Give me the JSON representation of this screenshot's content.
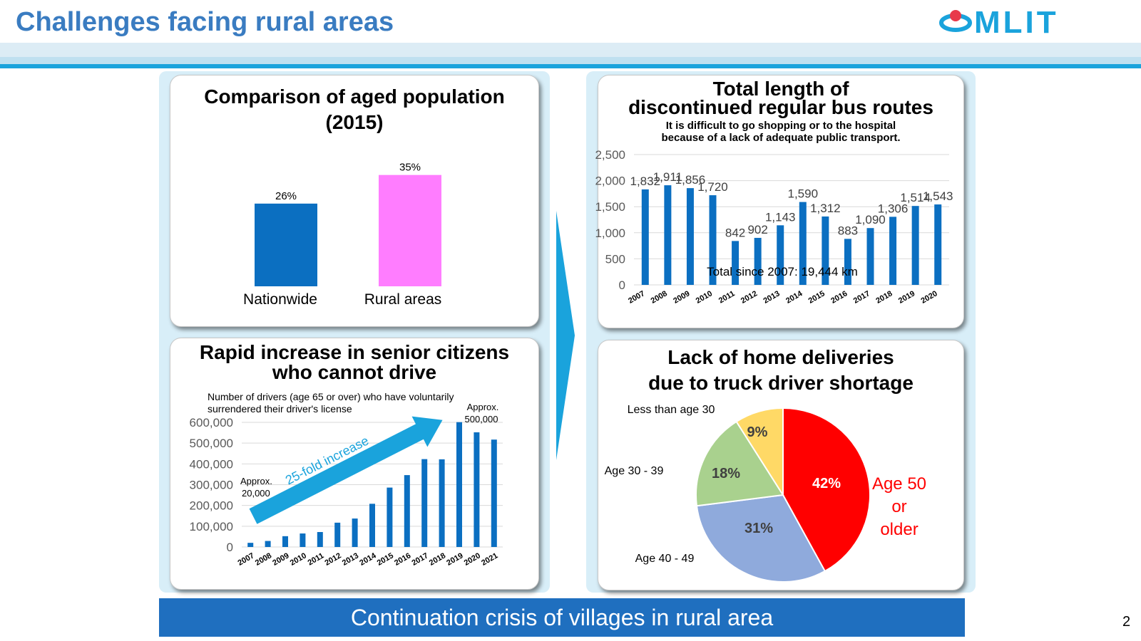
{
  "header": {
    "title": "Challenges facing rural areas",
    "logo_text": "MLIT"
  },
  "footer": {
    "banner": "Continuation crisis of villages in rural area",
    "page_number": "2"
  },
  "colors": {
    "accent": "#3a7cc1",
    "bar_blue": "#0b6fc1",
    "pink": "#ff7dff",
    "banner": "#1f6fbf",
    "arrow": "#1aa3dc"
  },
  "chart_data": [
    {
      "id": "aged",
      "type": "bar",
      "title": "Comparison of aged population (2015)",
      "title_lines": [
        "Comparison of aged population",
        "(2015)"
      ],
      "categories": [
        "Nationwide",
        "Rural areas"
      ],
      "values": [
        26,
        35
      ],
      "data_labels": [
        "26%",
        "35%"
      ],
      "colors": [
        "#0b6fc1",
        "#ff7dff"
      ],
      "unit": "%",
      "ylim": [
        0,
        45
      ]
    },
    {
      "id": "bus",
      "type": "bar",
      "title": "Total length of discontinued regular bus routes",
      "title_lines": [
        "Total length of",
        "discontinued regular bus routes"
      ],
      "subtitle_lines": [
        "It  is difficult to go shopping or to the hospital",
        "because of a lack of adequate public transport."
      ],
      "categories": [
        "2007",
        "2008",
        "2009",
        "2010",
        "2011",
        "2012",
        "2013",
        "2014",
        "2015",
        "2016",
        "2017",
        "2018",
        "2019",
        "2020"
      ],
      "values": [
        1832,
        1911,
        1856,
        1720,
        842,
        902,
        1143,
        1590,
        1312,
        883,
        1090,
        1306,
        1514,
        1543
      ],
      "data_labels": [
        "1,832",
        "1,911",
        "1,856",
        "1,720",
        "842",
        "902",
        "1,143",
        "1,590",
        "1,312",
        "883",
        "1,090",
        "1,306",
        "1,514",
        "1,543"
      ],
      "yticks": [
        "0",
        "500",
        "1,000",
        "1,500",
        "2,000",
        "2,500"
      ],
      "ylim": [
        0,
        2500
      ],
      "grid": true,
      "annotation": "Total since 2007: 19,444 km"
    },
    {
      "id": "drivers",
      "type": "bar",
      "title": "Rapid increase in senior citizens who cannot drive",
      "title_lines": [
        "Rapid increase in senior citizens",
        "who cannot drive"
      ],
      "subtitle_lines": [
        "Number of drivers (age 65 or over) who have voluntarily",
        "surrendered their driver's license"
      ],
      "categories": [
        "2007",
        "2008",
        "2009",
        "2010",
        "2011",
        "2012",
        "2013",
        "2014",
        "2015",
        "2016",
        "2017",
        "2018",
        "2019",
        "2020",
        "2021"
      ],
      "values": [
        20000,
        29000,
        52000,
        65000,
        72000,
        117000,
        137000,
        208000,
        286000,
        346000,
        423000,
        422000,
        601000,
        552000,
        517000
      ],
      "yticks": [
        "0",
        "100,000",
        "200,000",
        "300,000",
        "400,000",
        "500,000",
        "600,000"
      ],
      "ylim": [
        0,
        650000
      ],
      "grid": true,
      "annotations": {
        "start_lines": [
          "Approx.",
          "20,000"
        ],
        "end_lines": [
          "Approx.",
          "500,000"
        ],
        "arrow_text": "25-fold increase"
      }
    },
    {
      "id": "delivery",
      "type": "pie",
      "title": "Lack of home deliveries due to truck driver shortage",
      "title_lines": [
        "Lack of home deliveries",
        "due to truck driver shortage"
      ],
      "slices": [
        {
          "label": "Age 50 or older",
          "label_lines": [
            "Age 50",
            "or",
            "older"
          ],
          "value": 42,
          "text": "42%",
          "color": "#ff0000"
        },
        {
          "label": "Age 40 - 49",
          "label_lines": [
            "Age 40 - 49"
          ],
          "value": 31,
          "text": "31%",
          "color": "#8faadc"
        },
        {
          "label": "Age 30 - 39",
          "label_lines": [
            "Age 30 - 39"
          ],
          "value": 18,
          "text": "18%",
          "color": "#a9d18e"
        },
        {
          "label": "Less than age 30",
          "label_lines": [
            "Less than age 30"
          ],
          "value": 9,
          "text": "9%",
          "color": "#ffd966"
        }
      ]
    }
  ]
}
